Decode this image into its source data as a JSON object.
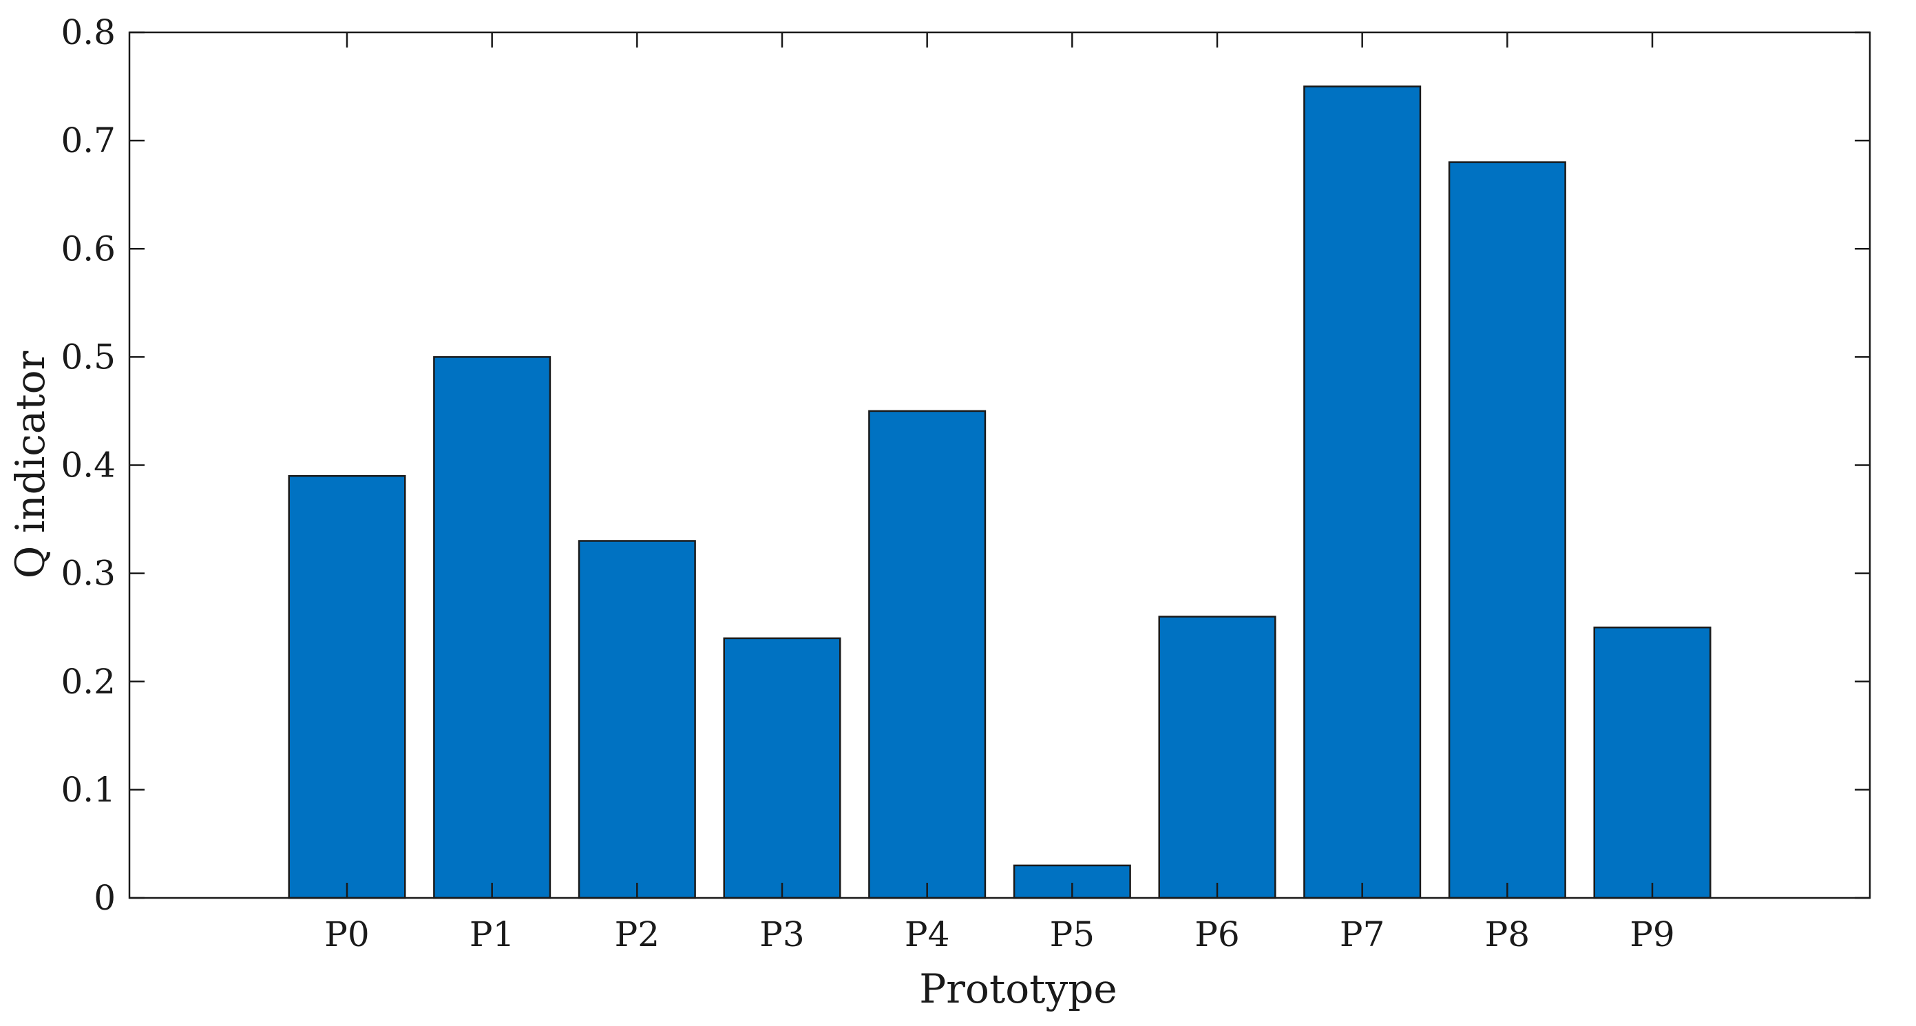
{
  "chart_data": {
    "type": "bar",
    "categories": [
      "P0",
      "P1",
      "P2",
      "P3",
      "P4",
      "P5",
      "P6",
      "P7",
      "P8",
      "P9"
    ],
    "values": [
      0.39,
      0.5,
      0.33,
      0.24,
      0.45,
      0.03,
      0.26,
      0.75,
      0.68,
      0.25
    ],
    "xlabel": "Prototype",
    "ylabel": "Q indicator",
    "ylim": [
      0,
      0.8
    ],
    "yticks": [
      "0",
      "0.1",
      "0.2",
      "0.3",
      "0.4",
      "0.5",
      "0.6",
      "0.7",
      "0.8"
    ],
    "xlim": [
      -1.5,
      10.5
    ],
    "bar_color": "#0072c2",
    "bar_edge_color": "#1a1a1a",
    "grid": false,
    "legend": false
  }
}
